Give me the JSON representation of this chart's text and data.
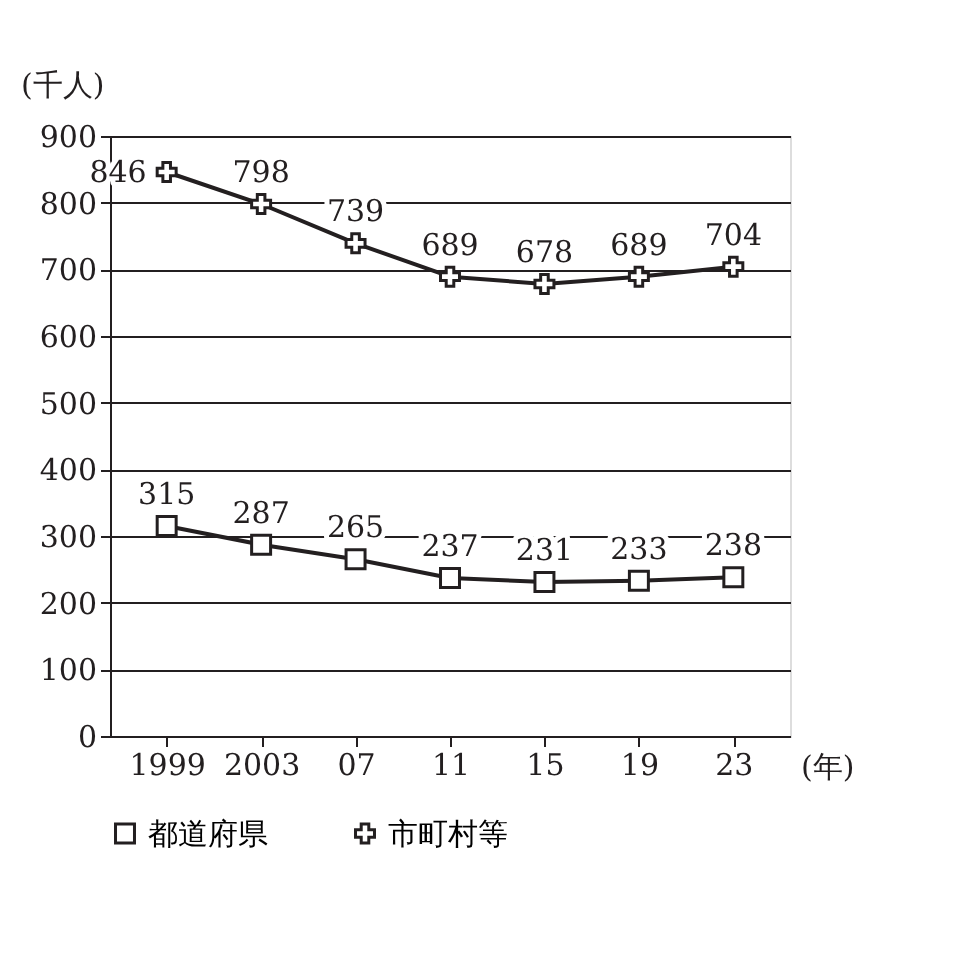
{
  "chart_data": {
    "type": "line",
    "ylabel": "(千人)",
    "xlabel": "(年)",
    "categories": [
      "1999",
      "2003",
      "07",
      "11",
      "15",
      "19",
      "23"
    ],
    "series": [
      {
        "name": "都道府県",
        "color": "#231f20",
        "marker": "square",
        "values": [
          315,
          287,
          265,
          237,
          231,
          233,
          238
        ]
      },
      {
        "name": "市町村等",
        "color": "#231f20",
        "marker": "cross",
        "values": [
          846,
          798,
          739,
          689,
          678,
          689,
          704
        ]
      }
    ],
    "ylim": [
      0,
      900
    ],
    "yticks": [
      0,
      100,
      200,
      300,
      400,
      500,
      600,
      700,
      800,
      900
    ],
    "grid": "y",
    "legend": "bottom",
    "data_labels": true,
    "line_style": "solid"
  }
}
